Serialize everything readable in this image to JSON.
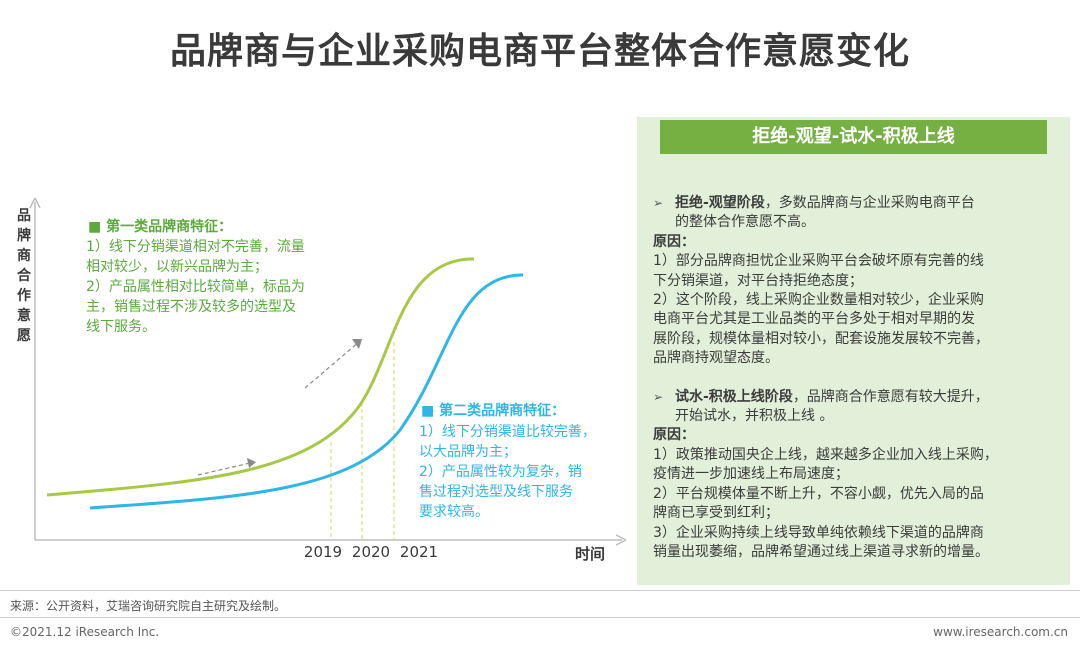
{
  "title": "品牌商与企业采购电商平台整体合作意愿变化",
  "chart_data": {
    "type": "line",
    "ylabel": "品牌商合作意愿",
    "xlabel": "时间",
    "x_ticks": [
      "2019",
      "2020",
      "2021"
    ],
    "series": [
      {
        "color": "#a9c846"
      },
      {
        "color": "#2fb6e6"
      }
    ],
    "annotations": {
      "group1": {
        "title": "■  第一类品牌商特征：",
        "color": "#5aab3c",
        "lines": [
          "1）线下分销渠道相对不完善，流量",
          "相对较少，以新兴品牌为主；",
          "2）产品属性相对比较简单，标品为",
          "主，销售过程不涉及较多的选型及",
          "线下服务。"
        ]
      },
      "group2": {
        "title": "■  第二类品牌商特征：",
        "color": "#2fb6e6",
        "lines": [
          "1）线下分销渠道比较完善，",
          "以大品牌为主；",
          "2）产品属性较为复杂，销",
          "售过程对选型及线下服务",
          "要求较高。"
        ]
      }
    }
  },
  "panel": {
    "header": "拒绝-观望-试水-积极上线",
    "bg_color": "#e2efd9",
    "header_color": "#76b043",
    "stage1": {
      "arrow": "➢",
      "title": "拒绝-观望阶段",
      "text_line1": "，多数品牌商与企业采购电商平台",
      "text_line2": "的整体合作意愿不高。",
      "reason_label": "原因：",
      "reasons": [
        "1）部分品牌商担忧企业采购平台会破坏原有完善的线",
        "下分销渠道，对平台持拒绝态度；",
        "2）这个阶段，线上采购企业数量相对较少，企业采购",
        "电商平台尤其是工业品类的平台多处于相对早期的发",
        "展阶段，规模体量相对较小，配套设施发展较不完善，",
        "品牌商持观望态度。"
      ]
    },
    "stage2": {
      "arrow": "➢",
      "title": "试水-积极上线阶段",
      "text_line1": "，品牌商合作意愿有较大提升，",
      "text_line2": "开始试水，并积极上线 。",
      "reason_label": "原因：",
      "reasons": [
        "1）政策推动国央企上线，越来越多企业加入线上采购，",
        "疫情进一步加速线上布局速度；",
        "2）平台规模体量不断上升，不容小觑，优先入局的品",
        "牌商已享受到红利；",
        "3）企业采购持续上线导致单纯依赖线下渠道的品牌商",
        "销量出现萎缩，品牌希望通过线上渠道寻求新的增量。"
      ]
    }
  },
  "footer": {
    "source": "来源：公开资料，艾瑞咨询研究院自主研究及绘制。",
    "copyright": "©2021.12 iResearch Inc.",
    "website": "www.iresearch.com.cn"
  }
}
